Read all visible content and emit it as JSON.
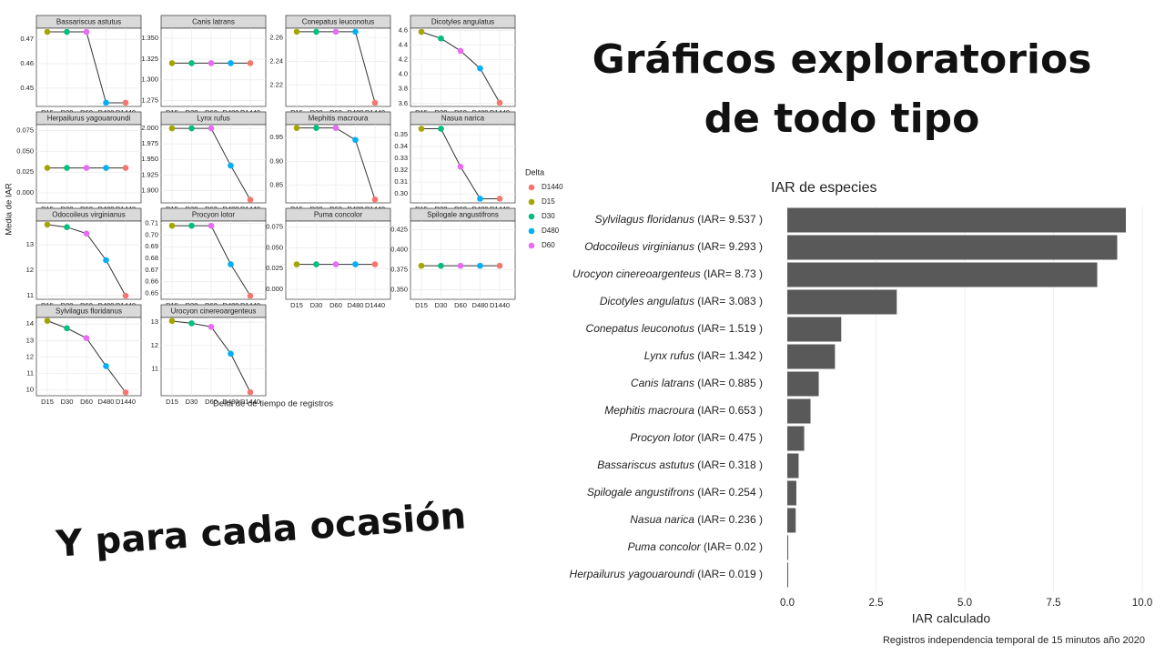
{
  "slide": {
    "title": [
      "Gráficos exploratorios",
      "de todo tipo"
    ],
    "tagline": "Y para cada ocasión"
  },
  "chart_data": [
    {
      "type": "facet-line",
      "x_label": "Delta de de tiempo de registros",
      "y_label": "Media de IAR",
      "categories": [
        "D15",
        "D30",
        "D60",
        "D480",
        "D1440"
      ],
      "legend": {
        "title": "Delta",
        "items": [
          {
            "name": "D1440",
            "color": "#F8766D"
          },
          {
            "name": "D15",
            "color": "#A3A500"
          },
          {
            "name": "D30",
            "color": "#00BF7D"
          },
          {
            "name": "D480",
            "color": "#00B0F6"
          },
          {
            "name": "D60",
            "color": "#E76BF3"
          }
        ]
      },
      "grid": true,
      "panels": [
        {
          "title": "Bassariscus astutus",
          "values": [
            0.473,
            0.473,
            0.473,
            0.444,
            0.444
          ],
          "ylim": [
            0.4425,
            0.4745
          ],
          "yticks": [
            0.45,
            0.46,
            0.47
          ]
        },
        {
          "title": "Canis latrans",
          "values": [
            1.32,
            1.32,
            1.32,
            1.32,
            1.32
          ],
          "ylim": [
            1.268,
            1.362
          ],
          "yticks": [
            1.275,
            {
              "value": 1.3,
              "label": "1.300"
            },
            1.325,
            {
              "value": 1.35,
              "label": "1.350"
            }
          ]
        },
        {
          "title": "Conepatus leuconotus",
          "values": [
            2.265,
            2.265,
            2.265,
            2.265,
            2.205
          ],
          "ylim": [
            2.202,
            2.268
          ],
          "yticks": [
            2.22,
            2.24,
            2.26
          ]
        },
        {
          "title": "Dicotyles angulatus",
          "values": [
            4.58,
            4.49,
            4.32,
            4.08,
            3.61
          ],
          "ylim": [
            3.56,
            4.63
          ],
          "yticks": [
            3.6,
            3.8,
            {
              "value": 4,
              "label": "4.0"
            },
            4.2,
            4.4,
            4.6
          ]
        },
        {
          "title": "Herpailurus yagouaroundi",
          "values": [
            0.03,
            0.03,
            0.03,
            0.03,
            0.03
          ],
          "ylim": [
            -0.012,
            0.082
          ],
          "yticks": [
            {
              "value": 0,
              "label": "0.000"
            },
            0.025,
            {
              "value": 0.05,
              "label": "0.050"
            },
            0.075
          ]
        },
        {
          "title": "Lynx rufus",
          "values": [
            2.0,
            2.0,
            2.0,
            1.94,
            1.885
          ],
          "ylim": [
            1.88,
            2.006
          ],
          "yticks": [
            {
              "value": 1.9,
              "label": "1.900"
            },
            1.925,
            {
              "value": 1.95,
              "label": "1.950"
            },
            1.975,
            {
              "value": 2,
              "label": "2.000"
            }
          ]
        },
        {
          "title": "Mephitis macroura",
          "values": [
            0.97,
            0.97,
            0.97,
            0.945,
            0.82
          ],
          "ylim": [
            0.813,
            0.977
          ],
          "yticks": [
            0.85,
            {
              "value": 0.9,
              "label": "0.90"
            },
            0.95
          ]
        },
        {
          "title": "Nasua narica",
          "values": [
            0.355,
            0.355,
            0.323,
            0.296,
            0.296
          ],
          "ylim": [
            0.2925,
            0.3585
          ],
          "yticks": [
            {
              "value": 0.3,
              "label": "0.30"
            },
            0.31,
            0.32,
            0.33,
            0.34,
            0.35
          ]
        },
        {
          "title": "Odocoileus virginianus",
          "values": [
            13.8,
            13.7,
            13.45,
            12.4,
            11.0
          ],
          "ylim": [
            10.86,
            13.94
          ],
          "yticks": [
            11,
            12,
            13
          ]
        },
        {
          "title": "Procyon lotor",
          "values": [
            0.708,
            0.708,
            0.708,
            0.675,
            0.648
          ],
          "ylim": [
            0.645,
            0.712
          ],
          "yticks": [
            0.65,
            0.66,
            0.67,
            0.68,
            0.69,
            {
              "value": 0.7,
              "label": "0.70"
            },
            0.71
          ]
        },
        {
          "title": "Puma concolor",
          "values": [
            0.03,
            0.03,
            0.03,
            0.03,
            0.03
          ],
          "ylim": [
            -0.012,
            0.082
          ],
          "yticks": [
            {
              "value": 0,
              "label": "0.000"
            },
            0.025,
            {
              "value": 0.05,
              "label": "0.050"
            },
            0.075
          ]
        },
        {
          "title": "Spilogale angustifrons",
          "values": [
            0.38,
            0.38,
            0.38,
            0.38,
            0.38
          ],
          "ylim": [
            0.338,
            0.436
          ],
          "yticks": [
            {
              "value": 0.35,
              "label": "0.350"
            },
            0.375,
            {
              "value": 0.4,
              "label": "0.400"
            },
            0.425
          ]
        },
        {
          "title": "Sylvilagus floridanus",
          "values": [
            14.2,
            13.75,
            13.15,
            11.45,
            9.85
          ],
          "ylim": [
            9.65,
            14.4
          ],
          "yticks": [
            10,
            11,
            12,
            13,
            14
          ]
        },
        {
          "title": "Urocyon cinereoargenteus",
          "values": [
            13.05,
            12.95,
            12.8,
            11.65,
            10.0
          ],
          "ylim": [
            9.85,
            13.2
          ],
          "yticks": [
            11,
            12,
            13
          ]
        }
      ]
    },
    {
      "type": "hbar",
      "title": "IAR de especies",
      "x_label": "IAR calculado",
      "caption": "Registros  independencia temporal de 15 minutos año 2020",
      "categories": [
        "Sylvilagus floridanus (IAR= 9.537 )",
        "Odocoileus virginianus (IAR= 9.293 )",
        "Urocyon cinereoargenteus (IAR= 8.73 )",
        "Dicotyles angulatus (IAR= 3.083 )",
        "Conepatus leuconotus (IAR= 1.519 )",
        "Lynx rufus (IAR= 1.342 )",
        "Canis latrans (IAR= 0.885 )",
        "Mephitis macroura (IAR= 0.653 )",
        "Procyon lotor (IAR= 0.475 )",
        "Bassariscus astutus (IAR= 0.318 )",
        "Spilogale angustifrons (IAR= 0.254 )",
        "Nasua narica (IAR= 0.236 )",
        "Puma concolor (IAR= 0.02 )",
        "Herpailurus yagouaroundi (IAR= 0.019 )"
      ],
      "values": [
        9.537,
        9.293,
        8.73,
        3.083,
        1.519,
        1.342,
        0.885,
        0.653,
        0.475,
        0.318,
        0.254,
        0.236,
        0.02,
        0.019
      ],
      "color": "#595959",
      "xlim": [
        -0.06,
        10.05
      ],
      "grid": true,
      "xticks": [
        {
          "value": 0,
          "label": "0.0"
        },
        2.5,
        {
          "value": 5,
          "label": "5.0"
        },
        7.5,
        {
          "value": 10,
          "label": "10.0"
        }
      ]
    }
  ]
}
